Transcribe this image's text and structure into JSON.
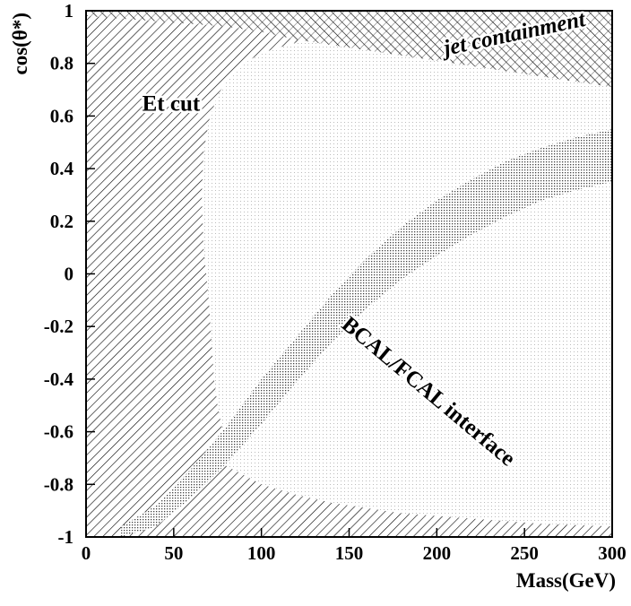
{
  "chart_data": {
    "type": "area",
    "title": "",
    "xlabel": "Mass(GeV)",
    "ylabel": "cos(θ*)",
    "xlim": [
      0,
      300
    ],
    "ylim": [
      -1,
      1
    ],
    "x_ticks": [
      0,
      50,
      100,
      150,
      200,
      250,
      300
    ],
    "y_ticks": [
      -1,
      -0.8,
      -0.6,
      -0.4,
      -0.2,
      0,
      0.2,
      0.4,
      0.6,
      0.8,
      1
    ],
    "x_tick_labels": [
      "0",
      "50",
      "100",
      "150",
      "200",
      "250",
      "300"
    ],
    "y_tick_labels": [
      "-1",
      "-0.8",
      "-0.6",
      "-0.4",
      "-0.2",
      "0",
      "0.2",
      "0.4",
      "0.6",
      "0.8",
      "1"
    ],
    "grid": false,
    "regions": [
      {
        "label": "jet containment",
        "fill": "hatch-forward",
        "boundary": {
          "x": [
            0,
            20,
            40,
            60,
            80,
            100,
            120,
            130,
            140,
            160,
            180,
            200,
            220,
            240,
            260,
            280,
            300
          ],
          "y": [
            0.98,
            0.97,
            0.96,
            0.95,
            0.94,
            0.92,
            0.89,
            0.88,
            0.87,
            0.85,
            0.83,
            0.81,
            0.79,
            0.77,
            0.75,
            0.73,
            0.71
          ]
        }
      },
      {
        "label": "Et cut",
        "fill": "hatch-back",
        "upper_edge": {
          "x": [
            130,
            120,
            110,
            100,
            90,
            82,
            75,
            70,
            67,
            66,
            67,
            70,
            72,
            73,
            75,
            78,
            80
          ],
          "y": [
            0.89,
            0.88,
            0.86,
            0.84,
            0.8,
            0.75,
            0.68,
            0.58,
            0.46,
            0.3,
            0.1,
            -0.1,
            -0.3,
            -0.4,
            -0.5,
            -0.6,
            -0.73
          ]
        },
        "lower_edge": {
          "x": [
            80,
            100,
            120,
            140,
            160,
            180,
            200,
            220,
            240,
            260,
            280,
            300
          ],
          "y": [
            -0.73,
            -0.8,
            -0.84,
            -0.87,
            -0.89,
            -0.91,
            -0.92,
            -0.93,
            -0.94,
            -0.95,
            -0.955,
            -0.96
          ]
        }
      },
      {
        "label": "BCAL/FCAL interface",
        "fill": "dots",
        "upper_edge": {
          "x": [
            20,
            40,
            60,
            80,
            100,
            120,
            140,
            160,
            180,
            200,
            220,
            240,
            260,
            280,
            300
          ],
          "y": [
            -0.96,
            -0.88,
            -0.74,
            -0.58,
            -0.4,
            -0.24,
            -0.08,
            0.06,
            0.18,
            0.28,
            0.36,
            0.43,
            0.48,
            0.52,
            0.55
          ]
        },
        "lower_edge": {
          "x": [
            20,
            40,
            60,
            80,
            100,
            120,
            140,
            160,
            180,
            200,
            220,
            240,
            260,
            280,
            300
          ],
          "y": [
            -1.0,
            -0.96,
            -0.85,
            -0.72,
            -0.57,
            -0.41,
            -0.26,
            -0.13,
            -0.02,
            0.07,
            0.15,
            0.22,
            0.28,
            0.32,
            0.35
          ]
        }
      },
      {
        "label": "",
        "fill": "light-dots",
        "description_only": "accepted region between the cuts"
      }
    ],
    "annotations": [
      {
        "text": "jet containment",
        "x": 205,
        "y": 0.83,
        "rotation": 12
      },
      {
        "text": "Et cut",
        "x": 32,
        "y": 0.62,
        "rotation": 0
      },
      {
        "text": "BCAL/FCAL interface",
        "x": 145,
        "y": -0.2,
        "rotation": -40
      }
    ]
  }
}
